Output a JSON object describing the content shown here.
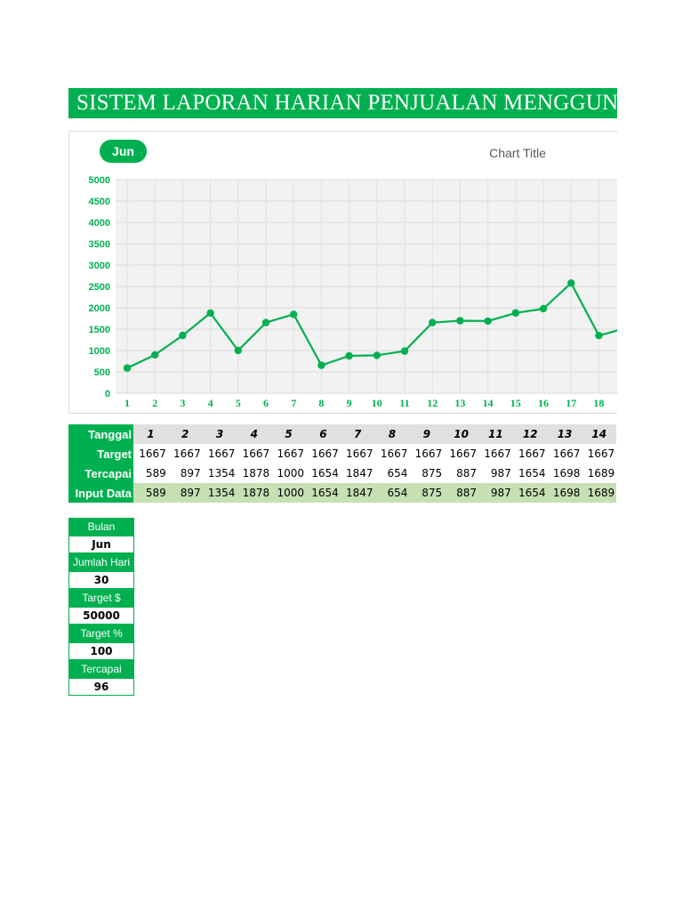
{
  "header": {
    "title": "SISTEM LAPORAN HARIAN PENJUALAN  MENGGUN"
  },
  "month_button": "Jun",
  "colors": {
    "accent": "#00b050",
    "input_row": "#c6e0b4",
    "header_row": "#e0e0e0"
  },
  "chart_data": {
    "type": "line",
    "title": "Chart Title",
    "x": [
      1,
      2,
      3,
      4,
      5,
      6,
      7,
      8,
      9,
      10,
      11,
      12,
      13,
      14,
      15,
      16,
      17,
      18
    ],
    "series": [
      {
        "values": [
          589,
          897,
          1354,
          1878,
          1000,
          1654,
          1847,
          654,
          875,
          887,
          987,
          1654,
          1698,
          1689,
          1880,
          1980,
          2580,
          1350
        ]
      }
    ],
    "continues_to": 1530,
    "ylim": [
      0,
      5000
    ],
    "yticks": [
      0,
      500,
      1000,
      1500,
      2000,
      2500,
      3000,
      3500,
      4000,
      4500,
      5000
    ],
    "grid": true,
    "color": "#00b050"
  },
  "table": {
    "labels": {
      "tanggal": "Tanggal",
      "target": "Target",
      "tercapai": "Tercapai",
      "input": "Input Data"
    },
    "tanggal": [
      "1",
      "2",
      "3",
      "4",
      "5",
      "6",
      "7",
      "8",
      "9",
      "10",
      "11",
      "12",
      "13",
      "14"
    ],
    "target": [
      "1667",
      "1667",
      "1667",
      "1667",
      "1667",
      "1667",
      "1667",
      "1667",
      "1667",
      "1667",
      "1667",
      "1667",
      "1667",
      "1667"
    ],
    "tercapai": [
      "589",
      "897",
      "1354",
      "1878",
      "1000",
      "1654",
      "1847",
      "654",
      "875",
      "887",
      "987",
      "1654",
      "1698",
      "1689"
    ],
    "input": [
      "589",
      "897",
      "1354",
      "1878",
      "1000",
      "1654",
      "1847",
      "654",
      "875",
      "887",
      "987",
      "1654",
      "1698",
      "1689"
    ]
  },
  "side_panel": [
    {
      "label": "Bulan",
      "value": "Jun"
    },
    {
      "label": "Jumlah Hari",
      "value": "30"
    },
    {
      "label": "Target $",
      "value": "50000"
    },
    {
      "label": "Target %",
      "value": "100"
    },
    {
      "label": "Tercapai",
      "value": "96"
    }
  ]
}
